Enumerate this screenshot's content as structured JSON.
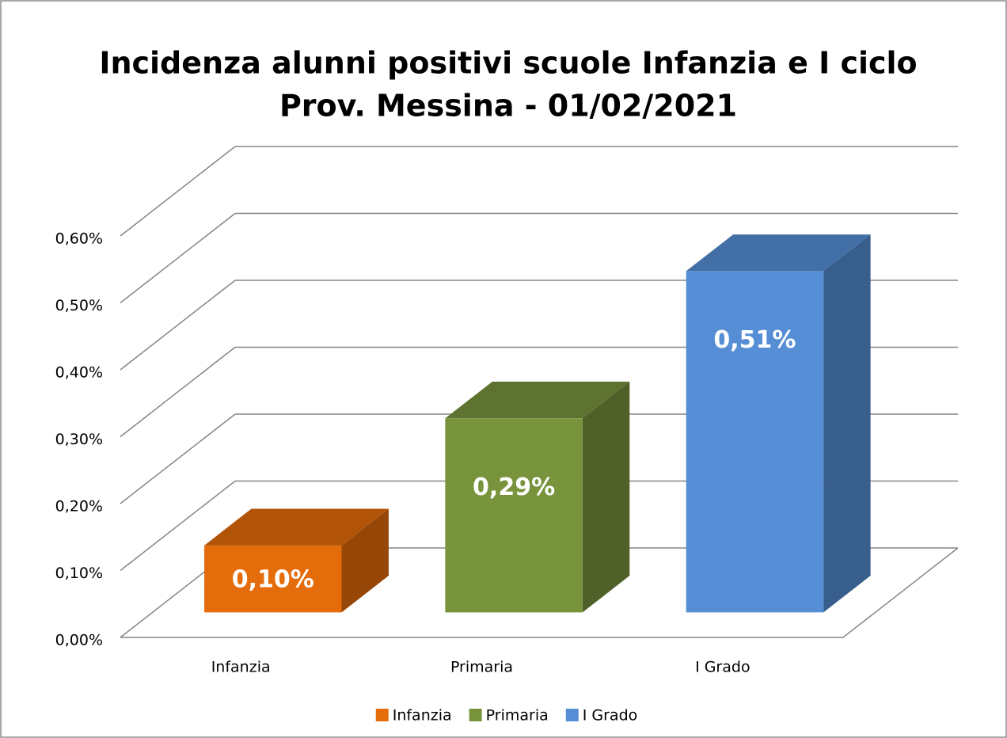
{
  "chart_data": {
    "type": "bar3d",
    "title": [
      "Incidenza alunni positivi scuole Infanzia e I ciclo",
      "Prov. Messina - 01/02/2021"
    ],
    "categories": [
      "Infanzia",
      "Primaria",
      "I Grado"
    ],
    "values": [
      0.1,
      0.29,
      0.51
    ],
    "value_labels": [
      "0,10%",
      "0,29%",
      "0,51%"
    ],
    "colors": [
      "#e46c0a",
      "#77933c",
      "#558ed5"
    ],
    "ylim": [
      0,
      0.6
    ],
    "yticks": [
      {
        "value": 0,
        "label": "0,00%"
      },
      {
        "value": 0.1,
        "label": "0,10%"
      },
      {
        "value": 0.2,
        "label": "0,20%"
      },
      {
        "value": 0.3,
        "label": "0,30%"
      },
      {
        "value": 0.4,
        "label": "0,40%"
      },
      {
        "value": 0.5,
        "label": "0,50%"
      },
      {
        "value": 0.6,
        "label": "0,60%"
      }
    ],
    "grid": true,
    "legend": "bottom"
  }
}
